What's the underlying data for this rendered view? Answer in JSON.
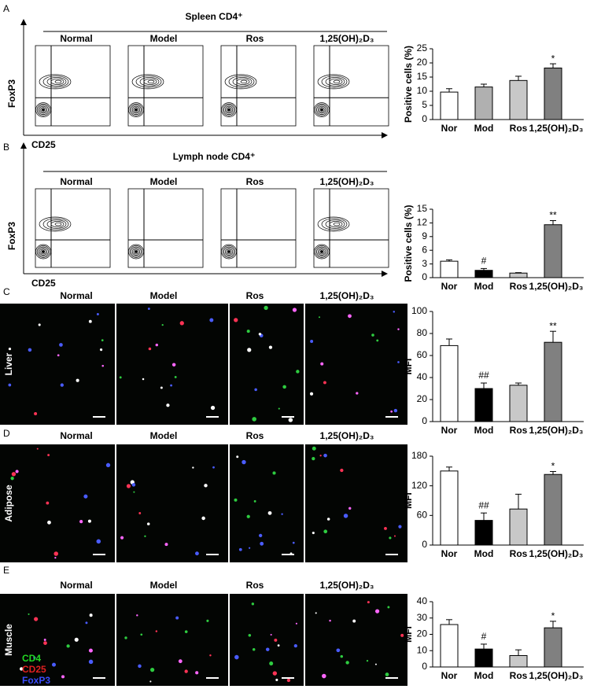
{
  "panels": [
    {
      "label": "A",
      "title": "Spleen CD4⁺",
      "columns": [
        "Normal",
        "Model",
        "Ros",
        "1,25(OH)₂D₃"
      ],
      "y_axis_label": "FoxP3",
      "x_axis_label": "CD25"
    },
    {
      "label": "B",
      "title": "Lymph node CD4⁺",
      "columns": [
        "Normal",
        "Model",
        "Ros",
        "1,25(OH)₂D₃"
      ],
      "y_axis_label": "FoxP3",
      "x_axis_label": "CD25"
    },
    {
      "label": "C",
      "columns": [
        "Normal",
        "Model",
        "Ros",
        "1,25(OH)₂D₃"
      ],
      "row_label": "Liver"
    },
    {
      "label": "D",
      "columns": [
        "Normal",
        "Model",
        "Ros",
        "1,25(OH)₂D₃"
      ],
      "row_label": "Adipose"
    },
    {
      "label": "E",
      "columns": [
        "Normal",
        "Model",
        "Ros",
        "1,25(OH)₂D₃"
      ],
      "row_label": "Muscle"
    }
  ],
  "legend": [
    {
      "text": "CD4",
      "color": "#22d822"
    },
    {
      "text": "CD25",
      "color": "#e02020"
    },
    {
      "text": "FoxP3",
      "color": "#3a4cff"
    }
  ],
  "chart_data": [
    {
      "type": "bar",
      "ylabel": "Positive cells (%)",
      "categories": [
        "Nor",
        "Mod",
        "Ros",
        "1,25(OH)₂D₃"
      ],
      "values": [
        9.7,
        11.5,
        13.8,
        18.2
      ],
      "errors": [
        1.2,
        1,
        1.5,
        1.5
      ],
      "colors": [
        "#ffffff",
        "#b0b0b0",
        "#c8c8c8",
        "#808080"
      ],
      "annotations": [
        null,
        null,
        null,
        "*"
      ],
      "ylim": [
        0,
        25
      ],
      "yticks": [
        0,
        5,
        10,
        15,
        20,
        25
      ]
    },
    {
      "type": "bar",
      "ylabel": "Positive cells (%)",
      "categories": [
        "Nor",
        "Mod",
        "Ros",
        "1,25(OH)₂D₃"
      ],
      "values": [
        3.6,
        1.6,
        1.0,
        11.6
      ],
      "errors": [
        0.3,
        0.4,
        0.1,
        0.9
      ],
      "colors": [
        "#ffffff",
        "#000000",
        "#c8c8c8",
        "#808080"
      ],
      "annotations": [
        null,
        "#",
        null,
        "**"
      ],
      "ylim": [
        0,
        15
      ],
      "yticks": [
        0,
        3,
        6,
        9,
        12,
        15
      ]
    },
    {
      "type": "bar",
      "ylabel": "MFI",
      "categories": [
        "Nor",
        "Mod",
        "Ros",
        "1,25(OH)₂D₃"
      ],
      "values": [
        69,
        30,
        33,
        72
      ],
      "errors": [
        6,
        5,
        2,
        10
      ],
      "colors": [
        "#ffffff",
        "#000000",
        "#c8c8c8",
        "#808080"
      ],
      "annotations": [
        null,
        "##",
        null,
        "**"
      ],
      "ylim": [
        0,
        100
      ],
      "yticks": [
        0,
        20,
        40,
        60,
        80,
        100
      ]
    },
    {
      "type": "bar",
      "ylabel": "MFI",
      "categories": [
        "Nor",
        "Mod",
        "Ros",
        "1,25(OH)₂D₃"
      ],
      "values": [
        150,
        50,
        73,
        143
      ],
      "errors": [
        8,
        15,
        30,
        6
      ],
      "colors": [
        "#ffffff",
        "#000000",
        "#c8c8c8",
        "#808080"
      ],
      "annotations": [
        null,
        "##",
        null,
        "*"
      ],
      "ylim": [
        0,
        180
      ],
      "yticks": [
        0,
        60,
        120,
        180
      ]
    },
    {
      "type": "bar",
      "ylabel": "MFI",
      "categories": [
        "Nor",
        "Mod",
        "Ros",
        "1,25(OH)₂D₃"
      ],
      "values": [
        26,
        11,
        7,
        24
      ],
      "errors": [
        3,
        3,
        3.5,
        4
      ],
      "colors": [
        "#ffffff",
        "#000000",
        "#c8c8c8",
        "#808080"
      ],
      "annotations": [
        null,
        "#",
        null,
        "*"
      ],
      "ylim": [
        0,
        40
      ],
      "yticks": [
        0,
        10,
        20,
        30,
        40
      ]
    }
  ]
}
